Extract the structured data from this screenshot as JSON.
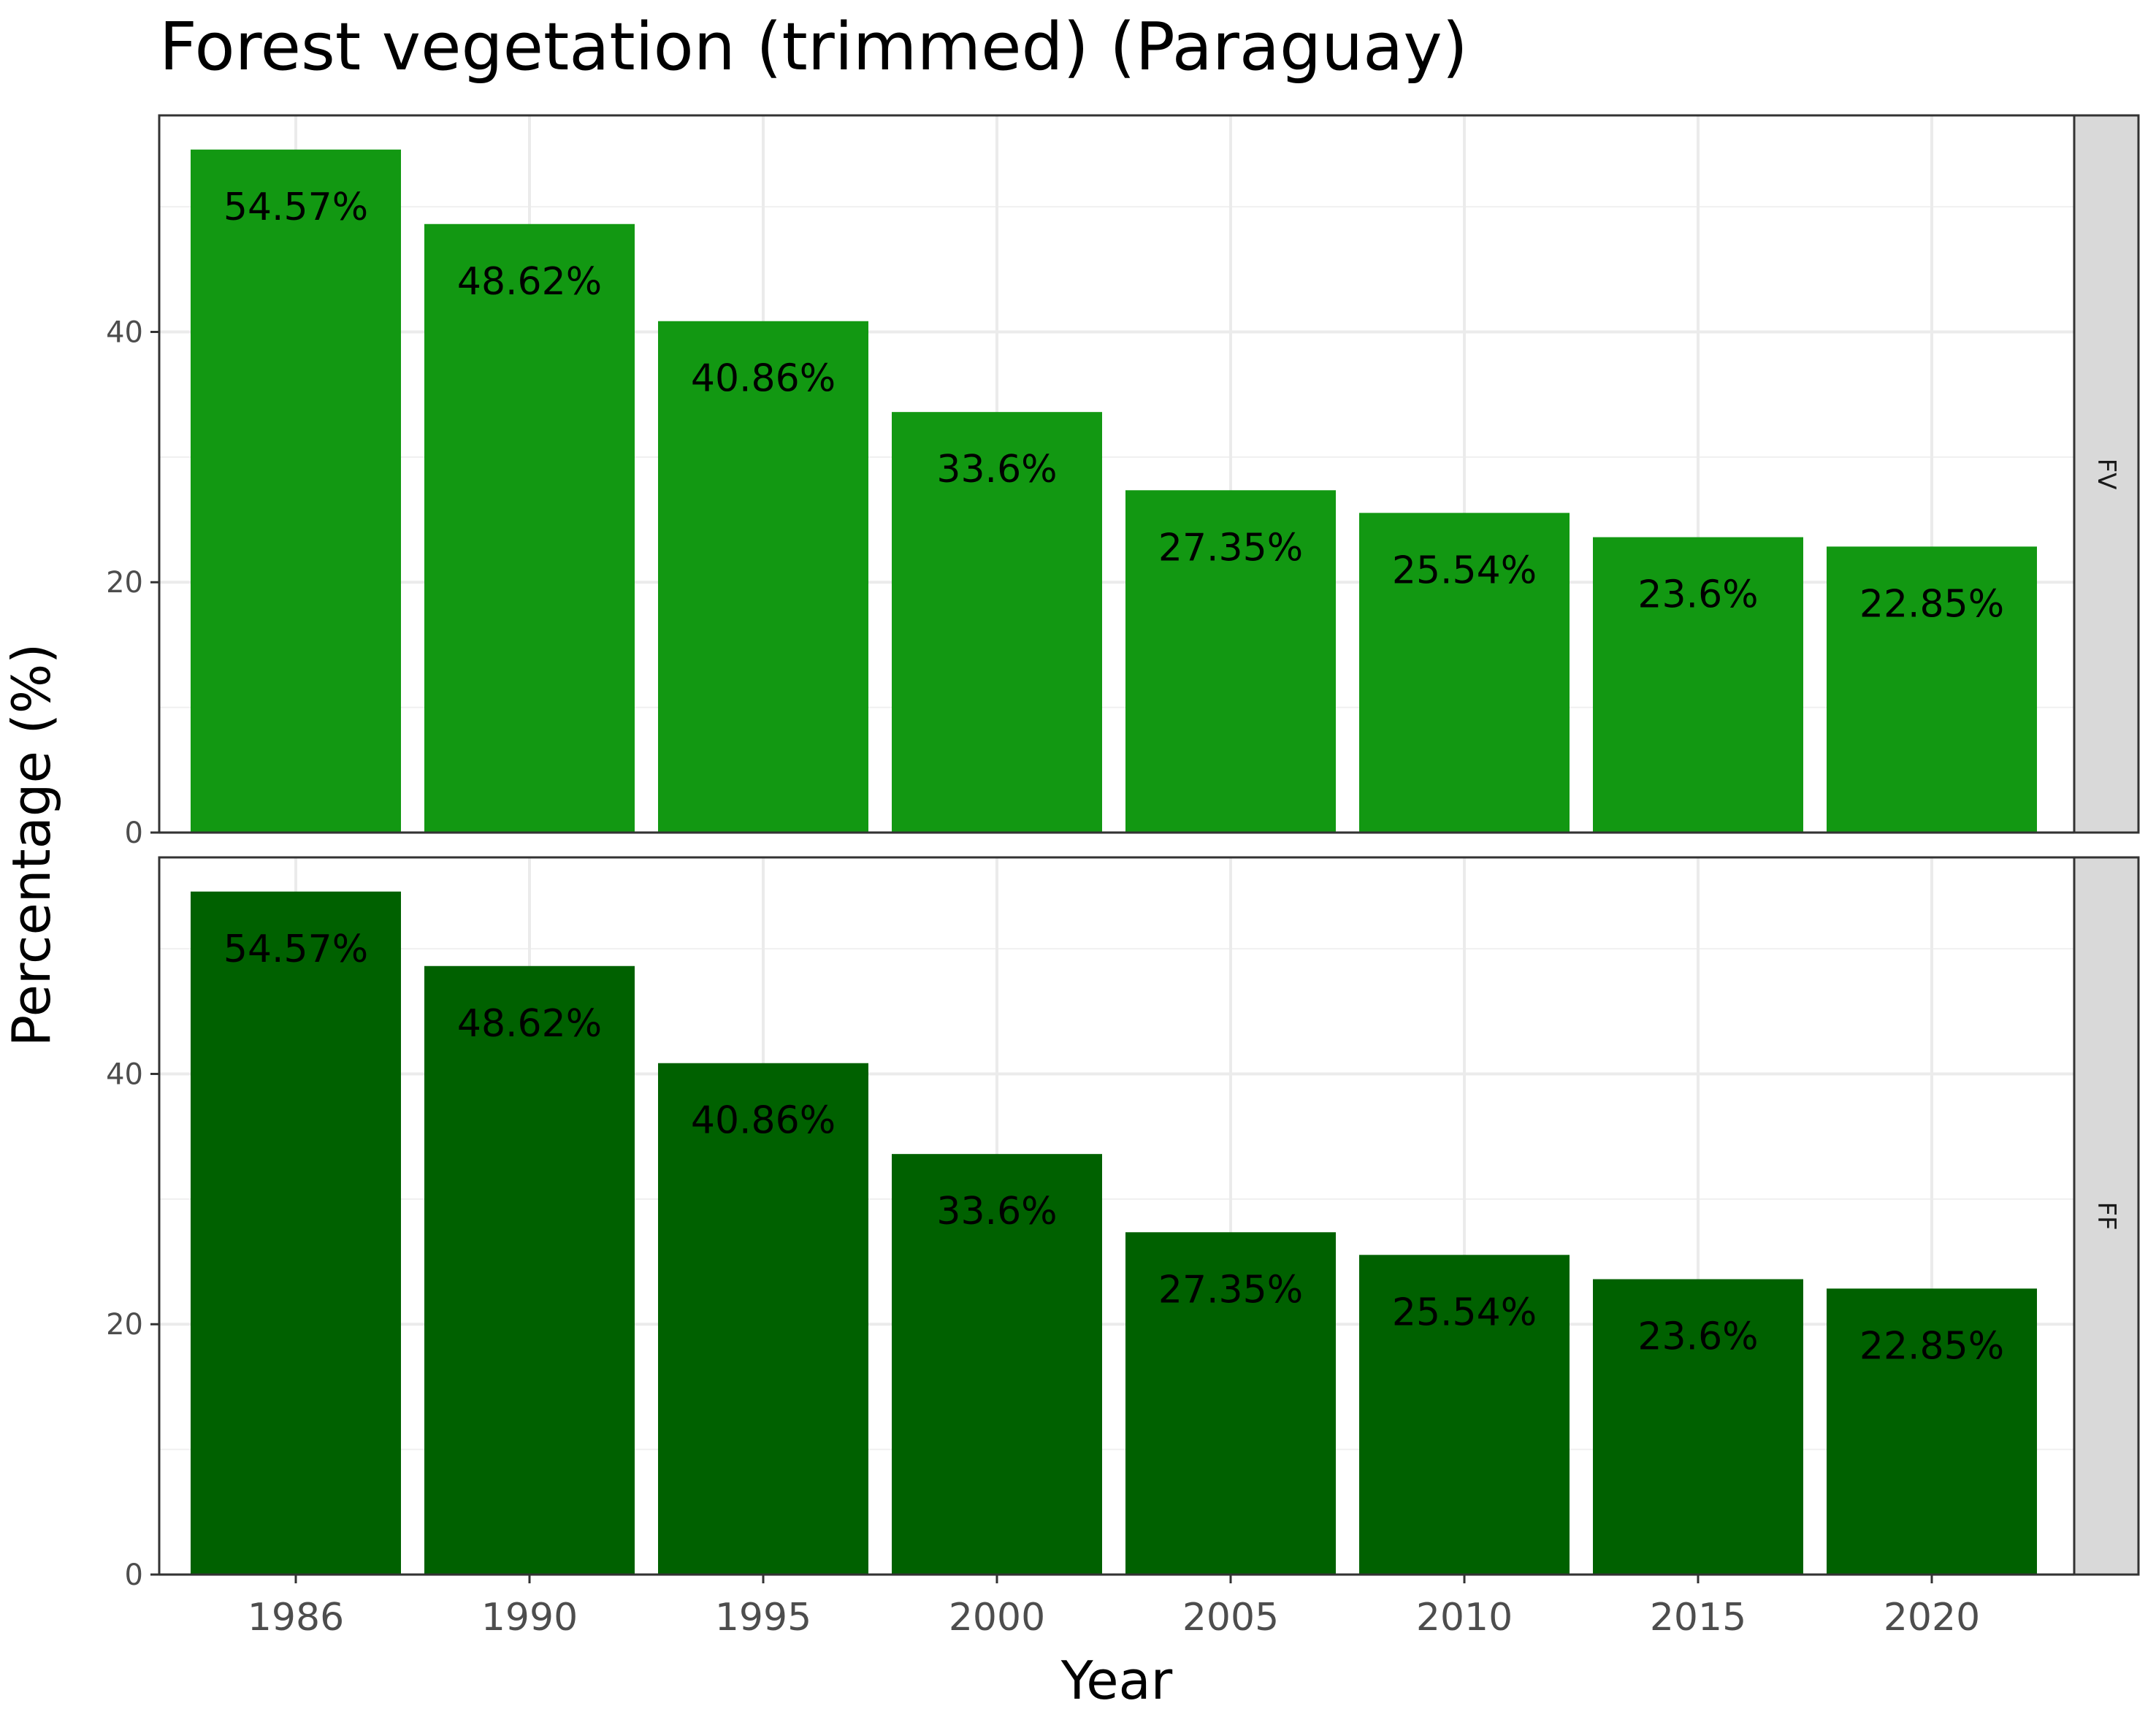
{
  "chart_data": {
    "type": "bar",
    "title": "Forest vegetation (trimmed) (Paraguay)",
    "xlabel": "Year",
    "ylabel": "Percentage (%)",
    "categories": [
      "1986",
      "1990",
      "1995",
      "2000",
      "2005",
      "2010",
      "2015",
      "2020"
    ],
    "ylim": [
      0,
      57.3
    ],
    "yticks": [
      0,
      20,
      40
    ],
    "grid": true,
    "legend": "none",
    "facets": [
      {
        "name": "FV",
        "color": "#129812",
        "values": [
          54.57,
          48.62,
          40.86,
          33.6,
          27.35,
          25.54,
          23.6,
          22.85
        ],
        "labels": [
          "54.57%",
          "48.62%",
          "40.86%",
          "33.6%",
          "27.35%",
          "25.54%",
          "23.6%",
          "22.85%"
        ]
      },
      {
        "name": "FF",
        "color": "#006100",
        "values": [
          54.57,
          48.62,
          40.86,
          33.6,
          27.35,
          25.54,
          23.6,
          22.85
        ],
        "labels": [
          "54.57%",
          "48.62%",
          "40.86%",
          "33.6%",
          "27.35%",
          "25.54%",
          "23.6%",
          "22.85%"
        ]
      }
    ]
  }
}
